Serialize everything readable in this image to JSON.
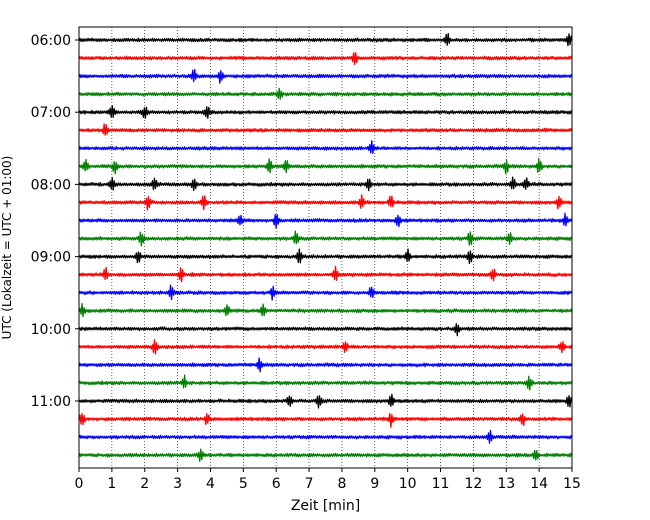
{
  "chart_data": {
    "type": "line",
    "title": "",
    "xlabel": "Zeit  [min]",
    "ylabel": "UTC (Lokalzeit = UTC + 01:00)",
    "xlim": [
      0,
      15
    ],
    "x_ticks": [
      0,
      1,
      2,
      3,
      4,
      5,
      6,
      7,
      8,
      9,
      10,
      11,
      12,
      13,
      14,
      15
    ],
    "x_tick_labels": [
      "0",
      "1",
      "2",
      "3",
      "4",
      "5",
      "6",
      "7",
      "8",
      "9",
      "10",
      "11",
      "12",
      "13",
      "14",
      "15"
    ],
    "y_tick_labels": [
      "06:00",
      "07:00",
      "08:00",
      "09:00",
      "10:00",
      "11:00"
    ],
    "grid": "vertical dotted lines at each minute",
    "trace_duration_min": 15,
    "trace_colors": [
      "#000000",
      "#ff0000",
      "#0000ff",
      "#008000"
    ],
    "traces": [
      {
        "start": "06:00",
        "events": [
          11.2,
          14.9
        ]
      },
      {
        "start": "06:15",
        "events": [
          8.4
        ]
      },
      {
        "start": "06:30",
        "events": [
          3.5,
          4.3
        ]
      },
      {
        "start": "06:45",
        "events": [
          6.1
        ]
      },
      {
        "start": "07:00",
        "events": [
          1.0,
          2.0,
          3.9
        ]
      },
      {
        "start": "07:15",
        "events": [
          0.8
        ]
      },
      {
        "start": "07:30",
        "events": [
          8.9
        ]
      },
      {
        "start": "07:45",
        "events": [
          0.2,
          1.1,
          5.8,
          6.3,
          13.0,
          14.0
        ]
      },
      {
        "start": "08:00",
        "events": [
          1.0,
          2.3,
          3.5,
          8.8,
          13.2,
          13.6
        ]
      },
      {
        "start": "08:15",
        "events": [
          2.1,
          3.8,
          8.6,
          9.5,
          14.6
        ]
      },
      {
        "start": "08:30",
        "events": [
          4.9,
          6.0,
          9.7,
          14.8
        ]
      },
      {
        "start": "08:45",
        "events": [
          1.9,
          6.6,
          11.9,
          13.1
        ]
      },
      {
        "start": "09:00",
        "events": [
          1.8,
          6.7,
          10.0,
          11.9
        ]
      },
      {
        "start": "09:15",
        "events": [
          0.8,
          3.1,
          7.8,
          12.6
        ]
      },
      {
        "start": "09:30",
        "events": [
          2.8,
          5.9,
          8.9
        ]
      },
      {
        "start": "09:45",
        "events": [
          0.1,
          4.5,
          5.6
        ]
      },
      {
        "start": "10:00",
        "events": [
          11.5
        ]
      },
      {
        "start": "10:15",
        "events": [
          2.3,
          8.1,
          14.7
        ]
      },
      {
        "start": "10:30",
        "events": [
          5.5
        ]
      },
      {
        "start": "10:45",
        "events": [
          3.2,
          13.7
        ]
      },
      {
        "start": "11:00",
        "events": [
          6.4,
          7.3,
          9.5,
          14.9
        ]
      },
      {
        "start": "11:15",
        "events": [
          0.1,
          3.9,
          9.5,
          13.5
        ]
      },
      {
        "start": "11:30",
        "events": [
          12.5
        ]
      },
      {
        "start": "11:45",
        "events": [
          3.7,
          13.9
        ]
      }
    ]
  }
}
